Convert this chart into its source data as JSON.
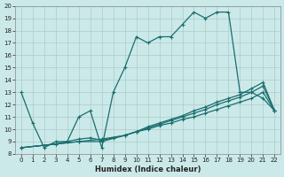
{
  "xlabel": "Humidex (Indice chaleur)",
  "xlim": [
    -0.5,
    22.5
  ],
  "ylim": [
    8,
    20
  ],
  "yticks": [
    8,
    9,
    10,
    11,
    12,
    13,
    14,
    15,
    16,
    17,
    18,
    19,
    20
  ],
  "xticks": [
    0,
    1,
    2,
    3,
    4,
    5,
    6,
    7,
    8,
    9,
    10,
    11,
    12,
    13,
    14,
    15,
    16,
    17,
    18,
    19,
    20,
    21,
    22
  ],
  "background_color": "#cce9e9",
  "grid_color": "#aacccc",
  "line_color": "#1a6e6e",
  "line1_x": [
    0,
    1,
    2,
    3,
    4,
    5,
    6,
    7,
    8,
    9,
    10,
    11,
    12,
    13,
    14,
    15,
    16,
    17,
    18,
    19,
    20,
    21,
    22
  ],
  "line1_y": [
    13,
    10.5,
    8.5,
    9.0,
    9.0,
    11.0,
    11.5,
    8.5,
    13.0,
    15.0,
    17.5,
    17.0,
    17.5,
    17.5,
    18.5,
    19.5,
    19.0,
    19.5,
    19.5,
    13.0,
    13.0,
    12.5,
    11.5
  ],
  "line2_x": [
    0,
    3,
    4,
    5,
    6,
    7,
    8,
    9,
    10,
    11,
    12,
    13,
    14,
    15,
    16,
    17,
    18,
    19,
    20,
    21,
    22
  ],
  "line2_y": [
    8.5,
    8.8,
    9.0,
    9.2,
    9.3,
    9.1,
    9.3,
    9.5,
    9.8,
    10.0,
    10.3,
    10.5,
    10.8,
    11.0,
    11.3,
    11.6,
    11.9,
    12.2,
    12.5,
    13.0,
    11.5
  ],
  "line3_x": [
    0,
    3,
    5,
    7,
    9,
    10,
    11,
    12,
    13,
    14,
    15,
    16,
    17,
    18,
    19,
    20,
    21,
    22
  ],
  "line3_y": [
    8.5,
    8.8,
    9.0,
    9.2,
    9.5,
    9.8,
    10.1,
    10.4,
    10.7,
    11.0,
    11.3,
    11.6,
    12.0,
    12.3,
    12.6,
    13.0,
    13.5,
    11.5
  ],
  "line4_x": [
    0,
    5,
    7,
    9,
    10,
    11,
    12,
    13,
    14,
    15,
    16,
    17,
    18,
    19,
    20,
    21,
    22
  ],
  "line4_y": [
    8.5,
    9.0,
    9.0,
    9.5,
    9.8,
    10.2,
    10.5,
    10.8,
    11.1,
    11.5,
    11.8,
    12.2,
    12.5,
    12.8,
    13.3,
    13.8,
    11.5
  ]
}
